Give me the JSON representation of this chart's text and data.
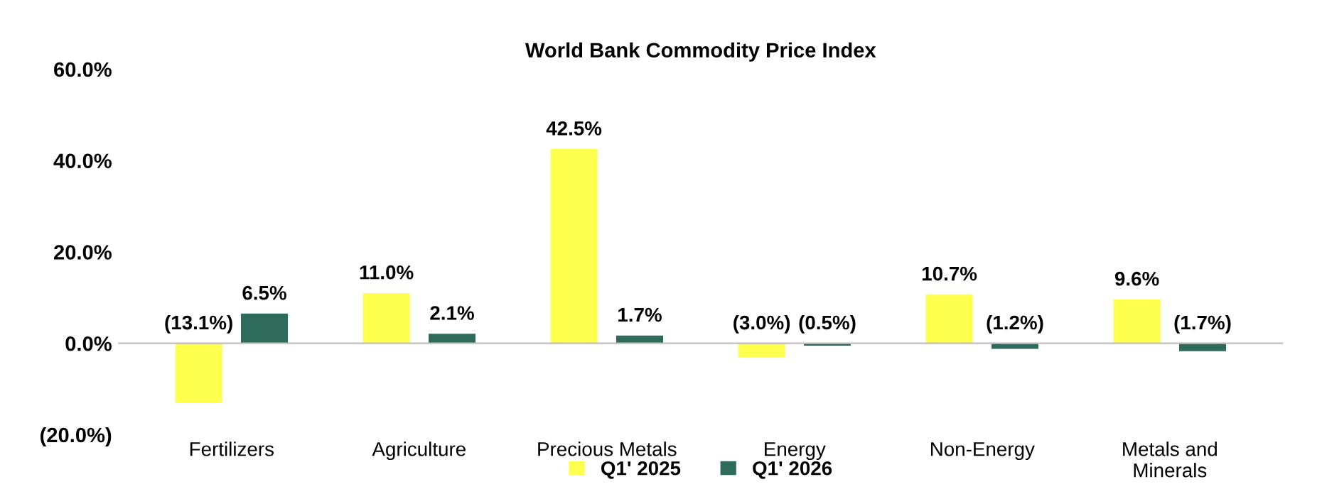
{
  "chart_data": {
    "type": "bar",
    "title": "World Bank Commodity Price Index",
    "categories": [
      "Fertilizers",
      "Agriculture",
      "Precious Metals",
      "Energy",
      "Non-Energy",
      "Metals and Minerals"
    ],
    "series": [
      {
        "name": "Q1' 2025",
        "color": "#ffff4d",
        "values": [
          -13.1,
          11.0,
          42.5,
          -3.0,
          10.7,
          9.6
        ],
        "value_labels": [
          "(13.1%)",
          "11.0%",
          "42.5%",
          "(3.0%)",
          "10.7%",
          "9.6%"
        ]
      },
      {
        "name": "Q1' 2026",
        "color": "#2e6b5a",
        "values": [
          6.5,
          2.1,
          1.7,
          -0.5,
          -1.2,
          -1.7
        ],
        "value_labels": [
          "6.5%",
          "2.1%",
          "1.7%",
          "(0.5%)",
          "(1.2%)",
          "(1.7%)"
        ]
      }
    ],
    "ylim": [
      -20,
      60
    ],
    "yticks": [
      {
        "value": -20,
        "label": "(20.0%)"
      },
      {
        "value": 0,
        "label": "0.0%"
      },
      {
        "value": 20,
        "label": "20.0%"
      },
      {
        "value": 40,
        "label": "40.0%"
      },
      {
        "value": 60,
        "label": "60.0%"
      }
    ],
    "legend": "bottom"
  }
}
